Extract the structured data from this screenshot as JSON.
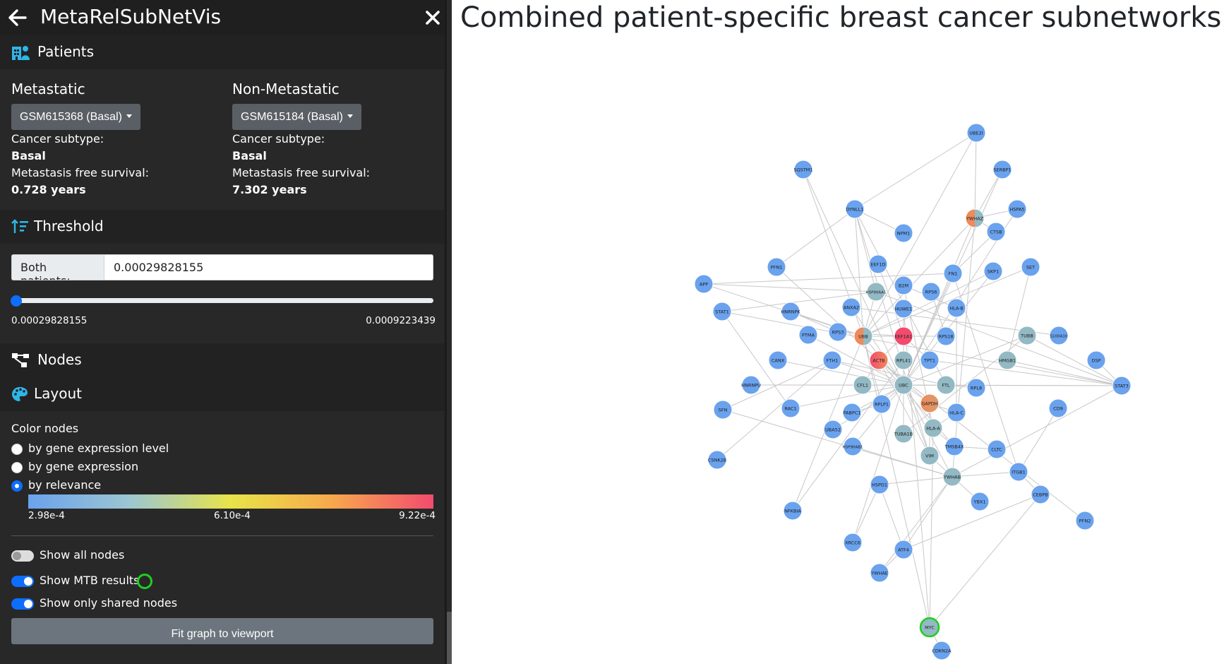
{
  "app": {
    "title": "MetaRelSubNetVis"
  },
  "sections": {
    "patients": "Patients",
    "threshold": "Threshold",
    "nodes": "Nodes",
    "layout": "Layout"
  },
  "patients": {
    "metastatic": {
      "heading": "Metastatic",
      "selected": "GSM615368 (Basal)",
      "subtype_label": "Cancer subtype:",
      "subtype": "Basal",
      "survival_label": "Metastasis free survival:",
      "survival": "0.728 years"
    },
    "non_metastatic": {
      "heading": "Non-Metastatic",
      "selected": "GSM615184 (Basal)",
      "subtype_label": "Cancer subtype:",
      "subtype": "Basal",
      "survival_label": "Metastasis free survival:",
      "survival": "7.302 years"
    }
  },
  "threshold": {
    "label": "Both patients:",
    "value": "0.00029828155",
    "min_label": "0.00029828155",
    "max_label": "0.0009223439",
    "slider_position": 0
  },
  "layout": {
    "color_nodes_label": "Color nodes",
    "options": [
      "by gene expression level",
      "by gene expression",
      "by relevance"
    ],
    "selected_option": 2,
    "colorbar": {
      "min": "2.98e-4",
      "mid": "6.10e-4",
      "max": "9.22e-4"
    },
    "toggles": {
      "show_all_nodes": "Show all nodes",
      "show_mtb": "Show MTB results",
      "show_shared": "Show only shared nodes"
    },
    "toggle_states": {
      "show_all_nodes": false,
      "show_mtb": true,
      "show_shared": true
    },
    "fit_button": "Fit graph to viewport"
  },
  "main": {
    "title": "Combined patient-specific breast cancer subnetworks"
  },
  "colors": {
    "accent": "#0d6efd",
    "low": "#6aa2ed",
    "mid": "#93b9c4",
    "high": "#f24b6e",
    "orange": "#ef8a5b",
    "mtb_ring": "#1fcf1f"
  },
  "network": {
    "nodes": [
      {
        "id": "UBE2I",
        "c": "low"
      },
      {
        "id": "SQSTM1",
        "c": "low"
      },
      {
        "id": "SERBP1",
        "c": "low"
      },
      {
        "id": "DYNLL1",
        "c": "low"
      },
      {
        "id": "HSPA5",
        "c": "low"
      },
      {
        "id": "YWHAZ",
        "c": "split"
      },
      {
        "id": "CTSB",
        "c": "low"
      },
      {
        "id": "NPM1",
        "c": "low"
      },
      {
        "id": "PFN1",
        "c": "low"
      },
      {
        "id": "EEF1D",
        "c": "low"
      },
      {
        "id": "SET",
        "c": "low"
      },
      {
        "id": "FN1",
        "c": "low"
      },
      {
        "id": "SKP1",
        "c": "low"
      },
      {
        "id": "APP",
        "c": "low"
      },
      {
        "id": "B2M",
        "c": "low"
      },
      {
        "id": "RPS6",
        "c": "low"
      },
      {
        "id": "HSP90AA1",
        "c": "mid"
      },
      {
        "id": "ANXA2",
        "c": "low"
      },
      {
        "id": "HUWE1",
        "c": "low"
      },
      {
        "id": "HLA-B",
        "c": "low"
      },
      {
        "id": "STAT1",
        "c": "low"
      },
      {
        "id": "HNRNPK",
        "c": "low"
      },
      {
        "id": "RPS3",
        "c": "low"
      },
      {
        "id": "PTMA",
        "c": "low"
      },
      {
        "id": "UBB",
        "c": "split"
      },
      {
        "id": "EEF1A1",
        "c": "high"
      },
      {
        "id": "RPS18",
        "c": "low"
      },
      {
        "id": "TUBB",
        "c": "mid"
      },
      {
        "id": "S100A10",
        "c": "low"
      },
      {
        "id": "CANX",
        "c": "low"
      },
      {
        "id": "FTH1",
        "c": "low"
      },
      {
        "id": "ACTB",
        "c": "hot"
      },
      {
        "id": "RPL41",
        "c": "mid"
      },
      {
        "id": "TPT1",
        "c": "low"
      },
      {
        "id": "HMGB1",
        "c": "mid"
      },
      {
        "id": "DSP",
        "c": "low"
      },
      {
        "id": "STAT3",
        "c": "low"
      },
      {
        "id": "HNRNPU",
        "c": "low"
      },
      {
        "id": "CFL1",
        "c": "mid"
      },
      {
        "id": "UBC",
        "c": "mid"
      },
      {
        "id": "FTL",
        "c": "mid"
      },
      {
        "id": "RPL8",
        "c": "low"
      },
      {
        "id": "SFN",
        "c": "low"
      },
      {
        "id": "RAC1",
        "c": "low"
      },
      {
        "id": "RPLP1",
        "c": "low"
      },
      {
        "id": "GAPDH",
        "c": "split2"
      },
      {
        "id": "HLA-C",
        "c": "low"
      },
      {
        "id": "CD9",
        "c": "low"
      },
      {
        "id": "PABPC1",
        "c": "low"
      },
      {
        "id": "UBA52",
        "c": "low"
      },
      {
        "id": "HLA-A",
        "c": "mid"
      },
      {
        "id": "TUBA1B",
        "c": "mid"
      },
      {
        "id": "HSP90AB1",
        "c": "low"
      },
      {
        "id": "TMSB4X",
        "c": "low"
      },
      {
        "id": "CLTC",
        "c": "low"
      },
      {
        "id": "CSNK2B",
        "c": "low"
      },
      {
        "id": "VIM",
        "c": "mid"
      },
      {
        "id": "YWHAB",
        "c": "mid"
      },
      {
        "id": "ITGB1",
        "c": "low"
      },
      {
        "id": "HSPD1",
        "c": "low"
      },
      {
        "id": "YBX1",
        "c": "low"
      },
      {
        "id": "CEBPB",
        "c": "low"
      },
      {
        "id": "PFN2",
        "c": "low"
      },
      {
        "id": "NFKBIA",
        "c": "low"
      },
      {
        "id": "XRCC6",
        "c": "low"
      },
      {
        "id": "ATF4",
        "c": "low"
      },
      {
        "id": "YWHAE",
        "c": "low"
      },
      {
        "id": "MYC",
        "c": "mtb"
      },
      {
        "id": "CDKN2A",
        "c": "low"
      }
    ],
    "edges": [
      [
        "UBE2I",
        "DYNLL1"
      ],
      [
        "UBE2I",
        "YWHAZ"
      ],
      [
        "UBE2I",
        "UBB"
      ],
      [
        "SERBP1",
        "YWHAZ"
      ],
      [
        "SERBP1",
        "UBC"
      ],
      [
        "SQSTM1",
        "UBB"
      ],
      [
        "SQSTM1",
        "UBC"
      ],
      [
        "DYNLL1",
        "HSP90AA1"
      ],
      [
        "DYNLL1",
        "UBB"
      ],
      [
        "DYNLL1",
        "NPM1"
      ],
      [
        "DYNLL1",
        "FTL"
      ],
      [
        "DYNLL1",
        "PFN1"
      ],
      [
        "YWHAZ",
        "HSPA5"
      ],
      [
        "YWHAZ",
        "UBB"
      ],
      [
        "YWHAZ",
        "UBC"
      ],
      [
        "YWHAZ",
        "YWHAB"
      ],
      [
        "YWHAZ",
        "CTSB"
      ],
      [
        "HSPA5",
        "UBC"
      ],
      [
        "CTSB",
        "FN1"
      ],
      [
        "FN1",
        "UBC"
      ],
      [
        "FN1",
        "APP"
      ],
      [
        "FN1",
        "ITGB1"
      ],
      [
        "SKP1",
        "UBC"
      ],
      [
        "SKP1",
        "UBB"
      ],
      [
        "SET",
        "HMGB1"
      ],
      [
        "SET",
        "UBB"
      ],
      [
        "APP",
        "UBB"
      ],
      [
        "APP",
        "HSP90AA1"
      ],
      [
        "PFN1",
        "ACTB"
      ],
      [
        "EEF1D",
        "EEF1A1"
      ],
      [
        "B2M",
        "HLA-B"
      ],
      [
        "B2M",
        "HLA-A"
      ],
      [
        "HSP90AA1",
        "STAT3"
      ],
      [
        "HSP90AA1",
        "UBB"
      ],
      [
        "HSP90AA1",
        "STAT1"
      ],
      [
        "ANXA2",
        "UBC"
      ],
      [
        "HUWE1",
        "UBC"
      ],
      [
        "HUWE1",
        "MYC"
      ],
      [
        "HLA-B",
        "HLA-C"
      ],
      [
        "STAT1",
        "STAT3"
      ],
      [
        "STAT1",
        "RAC1"
      ],
      [
        "HNRNPK",
        "UBB"
      ],
      [
        "HNRNPK",
        "RPS3"
      ],
      [
        "RPS3",
        "EEF1A1"
      ],
      [
        "PTMA",
        "UBC"
      ],
      [
        "UBB",
        "UBC"
      ],
      [
        "UBB",
        "EEF1A1"
      ],
      [
        "UBB",
        "RPS18"
      ],
      [
        "UBB",
        "RPLP1"
      ],
      [
        "EEF1A1",
        "RPL41"
      ],
      [
        "EEF1A1",
        "ACTB"
      ],
      [
        "EEF1A1",
        "TPT1"
      ],
      [
        "RPS18",
        "RPS6"
      ],
      [
        "TUBB",
        "UBC"
      ],
      [
        "TUBB",
        "TUBA1B"
      ],
      [
        "TUBB",
        "STAT3"
      ],
      [
        "S100A10",
        "ANXA2"
      ],
      [
        "CANX",
        "UBC"
      ],
      [
        "FTH1",
        "FTL"
      ],
      [
        "FTH1",
        "UBC"
      ],
      [
        "FTH1",
        "SFN"
      ],
      [
        "ACTB",
        "CFL1"
      ],
      [
        "ACTB",
        "VIM"
      ],
      [
        "ACTB",
        "TMSB4X"
      ],
      [
        "ACTB",
        "PFN2"
      ],
      [
        "ACTB",
        "GAPDH"
      ],
      [
        "RPL41",
        "UBC"
      ],
      [
        "HMGB1",
        "STAT3"
      ],
      [
        "DSP",
        "STAT3"
      ],
      [
        "STAT3",
        "UBC"
      ],
      [
        "STAT3",
        "YWHAB"
      ],
      [
        "STAT3",
        "HNRNPU"
      ],
      [
        "STAT3",
        "TPT1"
      ],
      [
        "CFL1",
        "UBC"
      ],
      [
        "UBC",
        "GAPDH"
      ],
      [
        "UBC",
        "RPLP1"
      ],
      [
        "UBC",
        "HLA-A"
      ],
      [
        "UBC",
        "TUBA1B"
      ],
      [
        "UBC",
        "VIM"
      ],
      [
        "UBC",
        "YWHAB"
      ],
      [
        "UBC",
        "PABPC1"
      ],
      [
        "FTL",
        "RPL8"
      ],
      [
        "RAC1",
        "UBC"
      ],
      [
        "RPLP1",
        "PABPC1"
      ],
      [
        "GAPDH",
        "HLA-C"
      ],
      [
        "GAPDH",
        "VIM"
      ],
      [
        "HLA-C",
        "HLA-A"
      ],
      [
        "CD9",
        "ITGB1"
      ],
      [
        "UBA52",
        "UBC"
      ],
      [
        "HLA-A",
        "TMSB4X"
      ],
      [
        "HSP90AB1",
        "UBC"
      ],
      [
        "HSP90AB1",
        "YWHAB"
      ],
      [
        "TMSB4X",
        "CLTC"
      ],
      [
        "VIM",
        "YWHAB"
      ],
      [
        "YWHAB",
        "ITGB1"
      ],
      [
        "YWHAB",
        "YBX1"
      ],
      [
        "YWHAB",
        "HSPD1"
      ],
      [
        "YWHAB",
        "ATF4"
      ],
      [
        "ITGB1",
        "CEBPB"
      ],
      [
        "HSPD1",
        "XRCC6"
      ],
      [
        "HSPD1",
        "ATF4"
      ],
      [
        "CEBPB",
        "MYC"
      ],
      [
        "CEBPB",
        "ATF4"
      ],
      [
        "NFKBIA",
        "RPL41"
      ],
      [
        "NFKBIA",
        "UBB"
      ],
      [
        "XRCC6",
        "UBC"
      ],
      [
        "ATF4",
        "YWHAE"
      ],
      [
        "YWHAE",
        "YWHAB"
      ],
      [
        "MYC",
        "CDKN2A"
      ],
      [
        "MYC",
        "UBB"
      ],
      [
        "MYC",
        "HLA-A"
      ],
      [
        "CSNK2B",
        "FTH1"
      ],
      [
        "HNRNPU",
        "UBC"
      ],
      [
        "SFN",
        "YWHAB"
      ],
      [
        "DYNLL1",
        "VIM"
      ]
    ]
  }
}
